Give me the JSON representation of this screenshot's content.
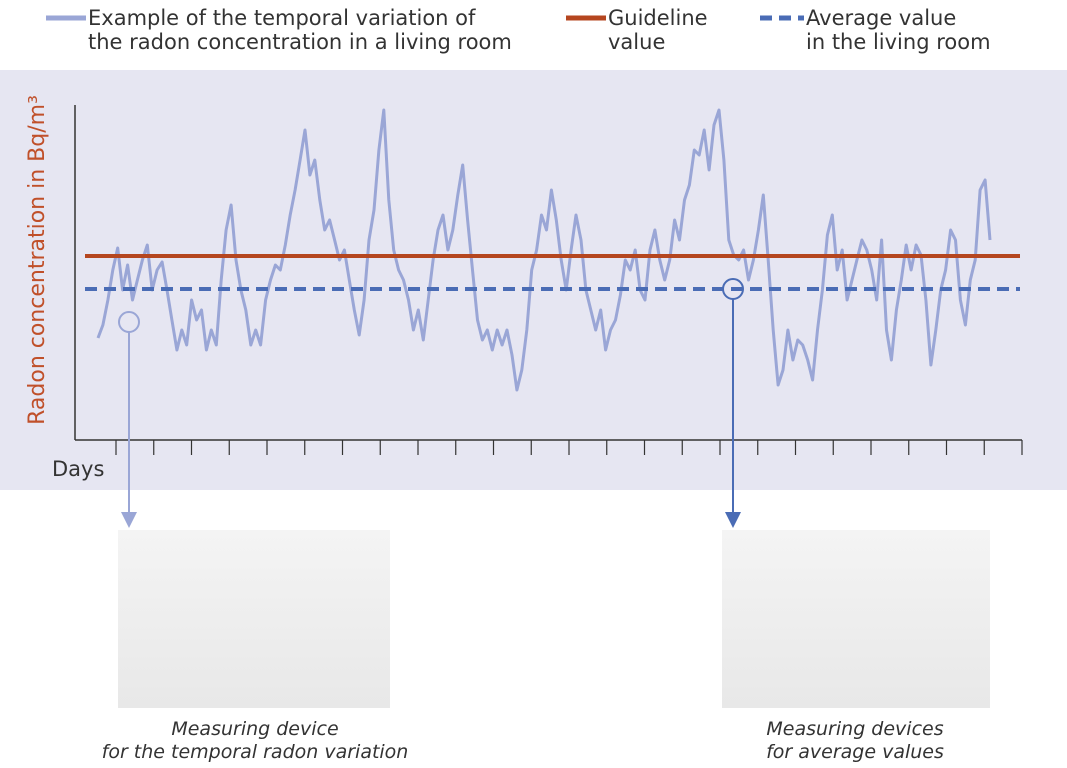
{
  "chart_data": {
    "type": "line",
    "ylabel": "Radon concentration in Bq/m³",
    "xlabel": "Days",
    "ylim": [
      0,
      335
    ],
    "x_tick_count": 25,
    "series": [
      {
        "name": "Example of the temporal variation of\nthe radon concentration in a living room",
        "color": "#9aa6d6",
        "values": [
          102,
          115,
          140,
          170,
          192,
          150,
          175,
          140,
          160,
          180,
          195,
          150,
          170,
          178,
          150,
          120,
          90,
          110,
          95,
          140,
          120,
          130,
          90,
          110,
          95,
          160,
          210,
          235,
          180,
          150,
          130,
          95,
          110,
          95,
          140,
          160,
          175,
          170,
          195,
          225,
          250,
          280,
          310,
          265,
          280,
          240,
          210,
          220,
          200,
          180,
          190,
          160,
          130,
          105,
          140,
          200,
          230,
          290,
          330,
          240,
          190,
          170,
          160,
          140,
          110,
          130,
          100,
          140,
          180,
          210,
          225,
          190,
          210,
          245,
          275,
          220,
          170,
          120,
          100,
          110,
          90,
          110,
          95,
          110,
          85,
          50,
          70,
          110,
          170,
          190,
          225,
          210,
          250,
          220,
          180,
          150,
          190,
          225,
          200,
          150,
          130,
          110,
          130,
          90,
          110,
          120,
          145,
          180,
          170,
          190,
          150,
          140,
          190,
          210,
          180,
          160,
          180,
          220,
          200,
          240,
          255,
          290,
          285,
          310,
          270,
          315,
          330,
          280,
          200,
          185,
          180,
          190,
          160,
          180,
          210,
          245,
          180,
          110,
          55,
          70,
          110,
          80,
          100,
          95,
          80,
          60,
          110,
          150,
          205,
          225,
          170,
          190,
          140,
          160,
          180,
          200,
          190,
          170,
          140,
          200,
          110,
          80,
          130,
          160,
          195,
          170,
          195,
          185,
          140,
          75,
          110,
          150,
          170,
          210,
          200,
          140,
          115,
          160,
          180,
          250,
          260,
          200
        ]
      }
    ],
    "reference_lines": [
      {
        "name": "Guideline\nvalue",
        "value": 184,
        "color": "#b5461f",
        "style": "solid"
      },
      {
        "name": "Average value\nin the living room",
        "value": 151,
        "color": "#4a6cb5",
        "style": "dashed"
      }
    ],
    "devices": [
      {
        "caption": "Measuring device\nfor the temporal radon variation"
      },
      {
        "caption": "Measuring devices\nfor average values"
      }
    ]
  }
}
